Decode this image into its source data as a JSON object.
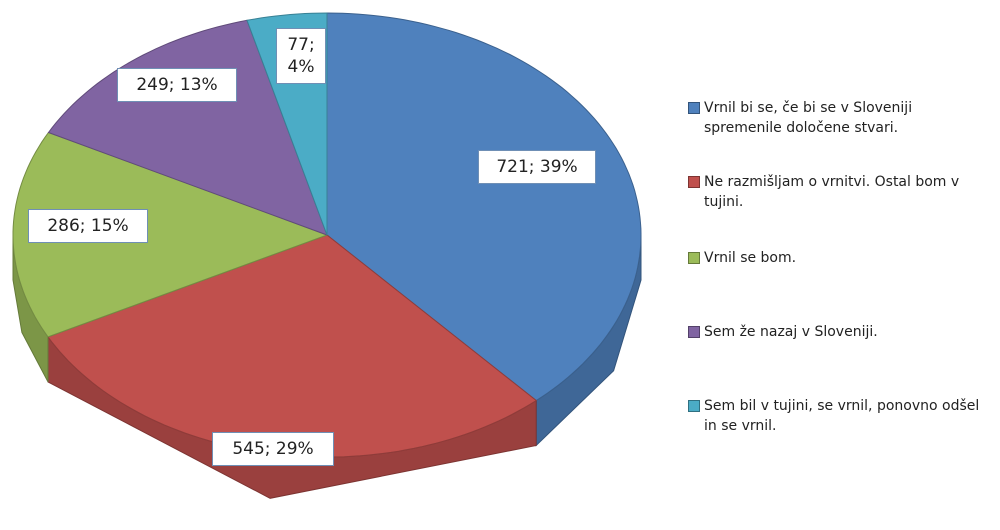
{
  "chart_data": {
    "type": "pie",
    "three_d": true,
    "categories": [
      "Vrnil bi se, če bi se v Sloveniji spremenile določene stvari.",
      "Ne razmišljam o vrnitvi. Ostal bom v tujini.",
      "Vrnil se bom.",
      "Sem že nazaj v Sloveniji.",
      "Sem bil v tujini, se vrnil, ponovno odšel in se vrnil."
    ],
    "values": [
      721,
      545,
      286,
      249,
      77
    ],
    "value_labels": [
      "721; 39%",
      "545; 29%",
      "286; 15%",
      "249; 13%",
      "77; 4%"
    ],
    "colors": [
      "#4f81bd",
      "#c0504d",
      "#9bbb59",
      "#8064a2",
      "#4bacc6"
    ],
    "legend": "right"
  }
}
